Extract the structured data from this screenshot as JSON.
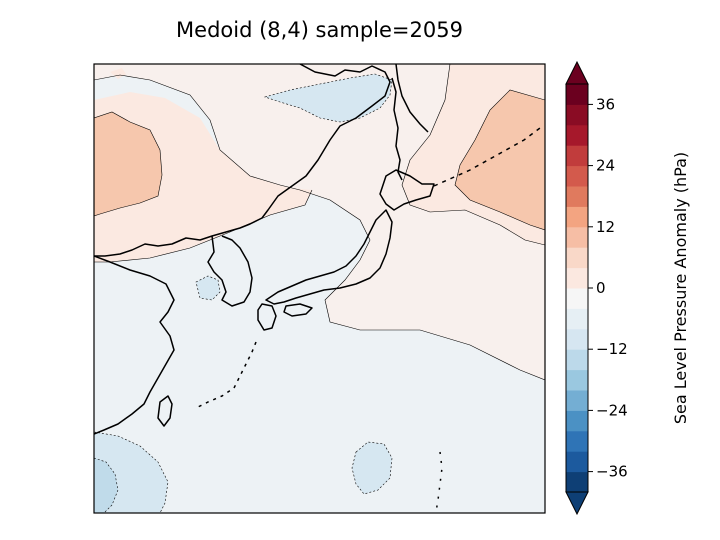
{
  "title": "Medoid (8,4) sample=2059",
  "colorbar": {
    "label": "Sea Level Pressure Anomaly (hPa)",
    "ticks": [
      "36",
      "24",
      "12",
      "0",
      "−12",
      "−24",
      "−36"
    ],
    "tick_values": [
      36,
      24,
      12,
      0,
      -12,
      -24,
      -36
    ],
    "range": [
      -40,
      40
    ],
    "step": 4,
    "colors": [
      "#0e3f75",
      "#1c5a9e",
      "#2f74b6",
      "#4b91c4",
      "#74aed3",
      "#9ac8e0",
      "#bcd9ea",
      "#d6e6f1",
      "#e6eff4",
      "#f6f6f6",
      "#fbe8e0",
      "#f9d8c8",
      "#f6bea5",
      "#f3a481",
      "#e07a5e",
      "#d35a4c",
      "#c13c3c",
      "#a6182b",
      "#8a0c24",
      "#6b001f"
    ]
  },
  "map": {
    "region": "East Asia / Japan",
    "field": "Sea level pressure anomaly",
    "colors": {
      "pos_medium": "#f6c7ad",
      "pos_light": "#fbe9e1",
      "pos_faint": "#f8f0ed",
      "neutral": "#edf2f5",
      "neg_light": "#d6e7f1",
      "neg_medium": "#c0dbea",
      "coast": "#000000"
    }
  }
}
